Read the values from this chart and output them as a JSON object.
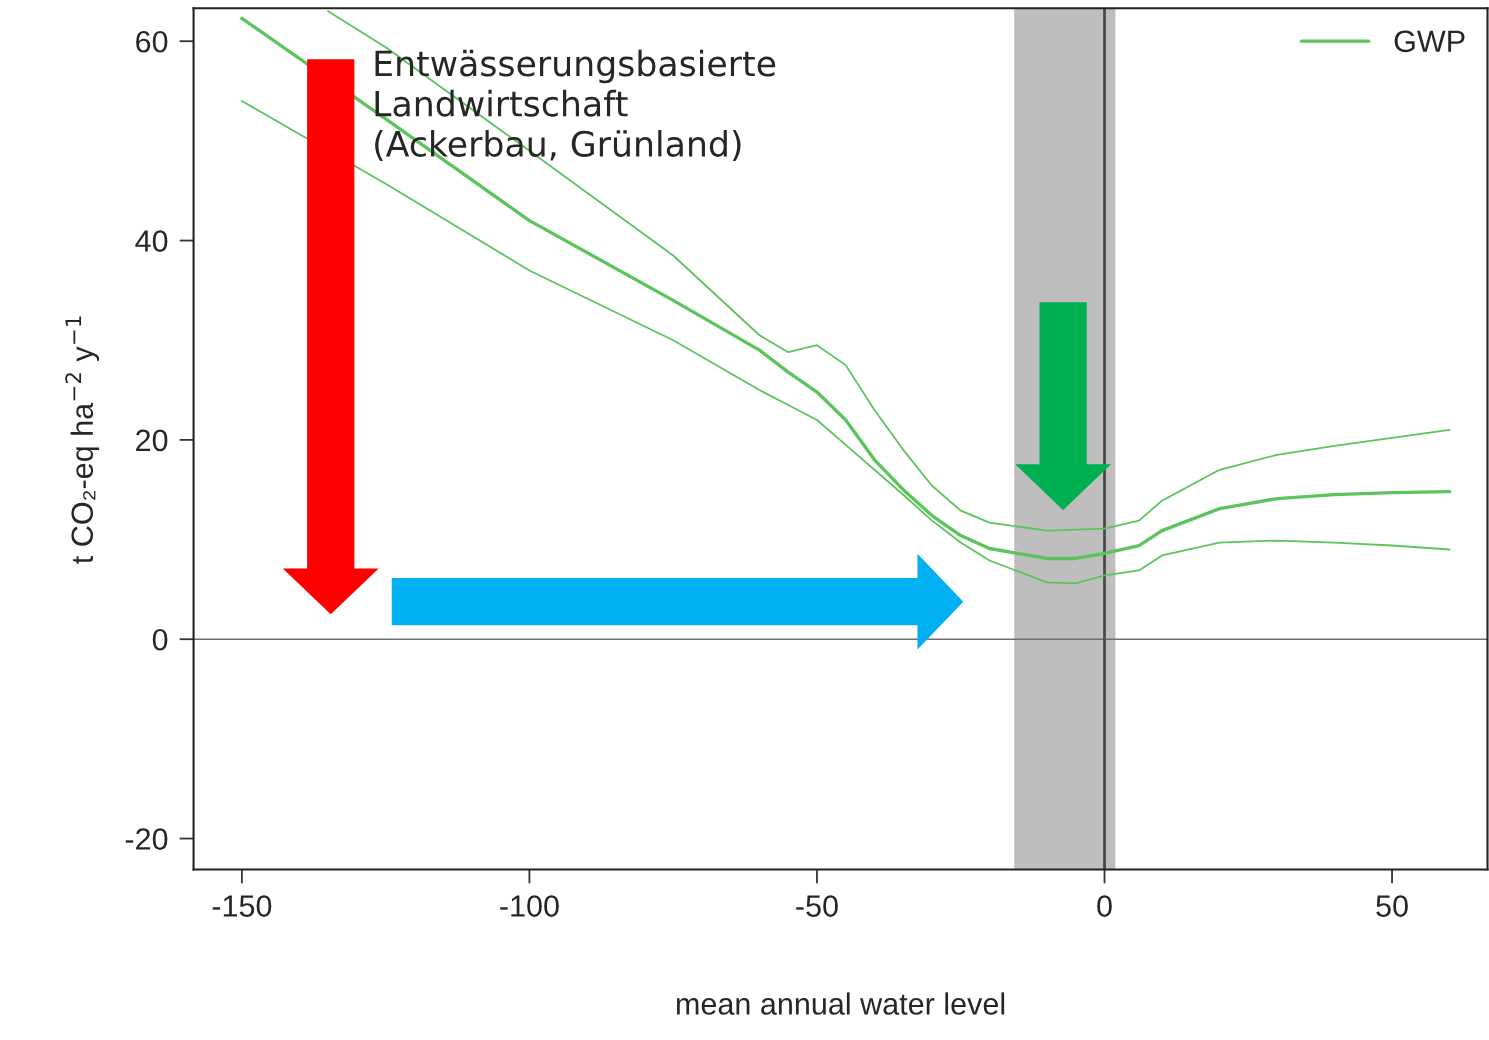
{
  "chart_data": {
    "type": "line",
    "xlabel": "mean annual water level",
    "ylabel": "t CO₂-eq ha$^{−2}$ y$^{−1}$",
    "x": [
      -150,
      -125,
      -100,
      -75,
      -60,
      -55,
      -50,
      -45,
      -40,
      -35,
      -30,
      -25,
      -20,
      -10,
      -5,
      0,
      6,
      10,
      20,
      30,
      40,
      50,
      60
    ],
    "series": [
      {
        "name": "GWP",
        "color": "#5cc45c",
        "values": [
          62.3,
          52.2,
          42,
          34,
          29,
          26.8,
          24.8,
          22,
          18,
          15,
          12.4,
          10.4,
          9.1,
          8.1,
          8.1,
          8.6,
          9.4,
          10.9,
          13.1,
          14.1,
          14.5,
          14.7,
          14.8
        ]
      },
      {
        "color": "#5cc45c",
        "values": [
          54,
          45.7,
          37,
          30,
          25,
          23.5,
          22,
          19.5,
          17,
          14.5,
          11.9,
          9.7,
          7.9,
          5.7,
          5.6,
          6.4,
          6.9,
          8.4,
          9.7,
          9.9,
          9.7,
          9.4,
          9.0
        ]
      },
      {
        "color": "#5cc45c",
        "x": [
          -135,
          -125,
          -100,
          -75,
          -60,
          -55,
          -50,
          -45,
          -40,
          -35,
          -30,
          -25,
          -20,
          -10,
          -5,
          0,
          6,
          10,
          20,
          30,
          40,
          50,
          60
        ],
        "values": [
          63,
          59.4,
          49,
          38.5,
          30.5,
          28.8,
          29.5,
          27.5,
          23,
          19,
          15.4,
          12.9,
          11.7,
          10.9,
          11.0,
          11.1,
          11.9,
          13.9,
          17,
          18.5,
          19.4,
          20.2,
          21
        ]
      }
    ],
    "xlim": [
      -158.4,
      66.6
    ],
    "ylim": [
      -23.1,
      63.3
    ],
    "xticks": [
      -150,
      -100,
      -50,
      0,
      50
    ],
    "yticks": [
      -20,
      0,
      20,
      40,
      60
    ],
    "bands": [
      {
        "axis": "x",
        "from": -15.7,
        "to": 1.9,
        "color": "#bebebe"
      }
    ],
    "ref_lines": [
      {
        "axis": "y",
        "value": 0,
        "color": "#6e6e6e"
      },
      {
        "axis": "x",
        "value": 0,
        "color": "#4a4a4a"
      }
    ],
    "annotations": [
      "Entwässerungsbasierte\nLandwirtschaft\n(Ackerbau, Grünland)"
    ],
    "legend": "top right",
    "grid": false,
    "marker": "none",
    "line_style": "solid"
  }
}
